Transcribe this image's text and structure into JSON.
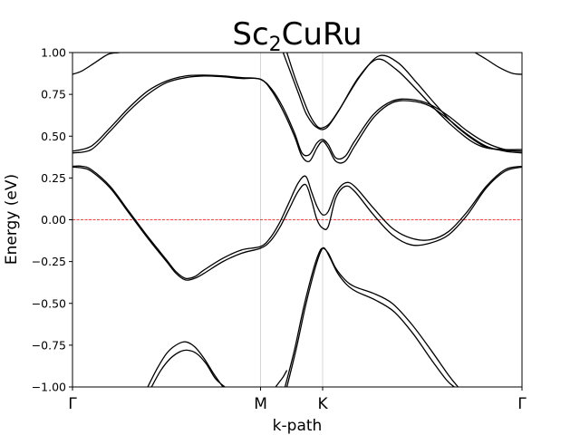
{
  "chart_data": {
    "type": "line",
    "title": {
      "prefix": "Sc",
      "subscript": "2",
      "suffix": "CuRu"
    },
    "xlabel": "k-path",
    "ylabel": "Energy (eV)",
    "xlim": [
      0,
      2.39
    ],
    "ylim": [
      -1.0,
      1.0
    ],
    "x_ticks": [
      {
        "label": "Γ",
        "x": 0
      },
      {
        "label": "M",
        "x": 1
      },
      {
        "label": "K",
        "x": 1.33
      },
      {
        "label": "Γ",
        "x": 2.39
      }
    ],
    "y_ticks": [
      {
        "value": -1.0,
        "label": "−1.00"
      },
      {
        "value": -0.75,
        "label": "−0.75"
      },
      {
        "value": -0.5,
        "label": "−0.50"
      },
      {
        "value": -0.25,
        "label": "−0.25"
      },
      {
        "value": 0.0,
        "label": "0.00"
      },
      {
        "value": 0.25,
        "label": "0.25"
      },
      {
        "value": 0.5,
        "label": "0.50"
      },
      {
        "value": 0.75,
        "label": "0.75"
      },
      {
        "value": 1.0,
        "label": "1.00"
      }
    ],
    "high_symmetry_lines": [
      1,
      1.33
    ],
    "fermi_level": {
      "value": 0.0,
      "color": "#ff0000",
      "style": "dashed"
    },
    "line_color": "#000000",
    "bands": [
      {
        "x": [
          0,
          0.05,
          0.12,
          0.19,
          0.25
        ],
        "y": [
          0.87,
          0.89,
          0.94,
          0.99,
          1.0
        ]
      },
      {
        "x": [
          2.14,
          2.2,
          2.27,
          2.34,
          2.39
        ],
        "y": [
          1.0,
          0.96,
          0.91,
          0.875,
          0.87
        ]
      },
      {
        "x": [
          0,
          0.1,
          0.2,
          0.3,
          0.4,
          0.5,
          0.6,
          0.7,
          0.8,
          0.9,
          1.0,
          1.06,
          1.12,
          1.18,
          1.22,
          1.26,
          1.3,
          1.33,
          1.36,
          1.4,
          1.45,
          1.5,
          1.6,
          1.7,
          1.8,
          1.9,
          2.0,
          2.1,
          2.2,
          2.3,
          2.39
        ],
        "y": [
          0.41,
          0.44,
          0.55,
          0.67,
          0.77,
          0.83,
          0.86,
          0.865,
          0.86,
          0.85,
          0.84,
          0.78,
          0.67,
          0.52,
          0.4,
          0.39,
          0.46,
          0.48,
          0.45,
          0.37,
          0.38,
          0.47,
          0.63,
          0.71,
          0.72,
          0.69,
          0.62,
          0.53,
          0.46,
          0.42,
          0.41
        ]
      },
      {
        "x": [
          0,
          0.1,
          0.2,
          0.3,
          0.4,
          0.5,
          0.6,
          0.7,
          0.8,
          0.9,
          1.0,
          1.06,
          1.12,
          1.18,
          1.22,
          1.26,
          1.3,
          1.33,
          1.36,
          1.4,
          1.45,
          1.5,
          1.6,
          1.7,
          1.8,
          1.9,
          2.0,
          2.1,
          2.2,
          2.3,
          2.39
        ],
        "y": [
          0.4,
          0.42,
          0.53,
          0.65,
          0.75,
          0.82,
          0.85,
          0.86,
          0.855,
          0.845,
          0.84,
          0.77,
          0.65,
          0.5,
          0.38,
          0.35,
          0.43,
          0.47,
          0.43,
          0.35,
          0.35,
          0.44,
          0.61,
          0.7,
          0.71,
          0.68,
          0.6,
          0.51,
          0.44,
          0.41,
          0.4
        ]
      },
      {
        "x": [
          1.12,
          1.16,
          1.2,
          1.24,
          1.28,
          1.31,
          1.33,
          1.36,
          1.42,
          1.52,
          1.62,
          1.72,
          1.82,
          1.92,
          2.02,
          2.12,
          2.2,
          2.3,
          2.39
        ],
        "y": [
          1.0,
          0.88,
          0.76,
          0.64,
          0.57,
          0.545,
          0.54,
          0.56,
          0.66,
          0.85,
          0.96,
          0.9,
          0.79,
          0.67,
          0.56,
          0.47,
          0.43,
          0.42,
          0.42
        ]
      },
      {
        "x": [
          1.14,
          1.18,
          1.22,
          1.26,
          1.3,
          1.33,
          1.37,
          1.43,
          1.53,
          1.63,
          1.73,
          1.83,
          1.93,
          2.03,
          2.13,
          2.21,
          2.3,
          2.39
        ],
        "y": [
          1.0,
          0.86,
          0.74,
          0.63,
          0.56,
          0.55,
          0.58,
          0.68,
          0.86,
          0.98,
          0.94,
          0.82,
          0.69,
          0.57,
          0.48,
          0.43,
          0.415,
          0.41
        ]
      },
      {
        "x": [
          0,
          0.05,
          0.1,
          0.2,
          0.3,
          0.4,
          0.5,
          0.55,
          0.6,
          0.65,
          0.7,
          0.8,
          0.9,
          1.0,
          1.05,
          1.1,
          1.15,
          1.2,
          1.24,
          1.27,
          1.3,
          1.33,
          1.36,
          1.4,
          1.45,
          1.5,
          1.6,
          1.7,
          1.8,
          1.9,
          2.0,
          2.1,
          2.2,
          2.3,
          2.39
        ],
        "y": [
          0.32,
          0.32,
          0.3,
          0.2,
          0.05,
          -0.1,
          -0.24,
          -0.31,
          -0.35,
          -0.34,
          -0.3,
          -0.23,
          -0.18,
          -0.16,
          -0.11,
          -0.02,
          0.1,
          0.22,
          0.26,
          0.17,
          0.08,
          0.03,
          0.05,
          0.16,
          0.22,
          0.2,
          0.07,
          -0.05,
          -0.11,
          -0.12,
          -0.07,
          0.05,
          0.2,
          0.3,
          0.32
        ]
      },
      {
        "x": [
          0,
          0.05,
          0.1,
          0.2,
          0.3,
          0.4,
          0.5,
          0.55,
          0.6,
          0.65,
          0.7,
          0.8,
          0.9,
          1.0,
          1.05,
          1.1,
          1.15,
          1.2,
          1.24,
          1.27,
          1.3,
          1.33,
          1.36,
          1.4,
          1.45,
          1.5,
          1.6,
          1.7,
          1.8,
          1.9,
          2.0,
          2.1,
          2.2,
          2.3,
          2.39
        ],
        "y": [
          0.315,
          0.31,
          0.29,
          0.19,
          0.04,
          -0.11,
          -0.25,
          -0.32,
          -0.36,
          -0.35,
          -0.32,
          -0.25,
          -0.2,
          -0.17,
          -0.13,
          -0.05,
          0.06,
          0.17,
          0.21,
          0.12,
          0.0,
          -0.05,
          -0.04,
          0.13,
          0.2,
          0.17,
          0.03,
          -0.09,
          -0.15,
          -0.14,
          -0.09,
          0.03,
          0.19,
          0.29,
          0.315
        ]
      },
      {
        "x": [
          1.13,
          1.18,
          1.23,
          1.28,
          1.31,
          1.33,
          1.36,
          1.4,
          1.45,
          1.5,
          1.6,
          1.7,
          1.8,
          1.9,
          2.0,
          2.05
        ],
        "y": [
          -1.0,
          -0.78,
          -0.52,
          -0.3,
          -0.2,
          -0.17,
          -0.2,
          -0.29,
          -0.36,
          -0.4,
          -0.44,
          -0.5,
          -0.62,
          -0.77,
          -0.93,
          -1.0
        ]
      },
      {
        "x": [
          1.14,
          1.19,
          1.24,
          1.29,
          1.32,
          1.34,
          1.37,
          1.41,
          1.46,
          1.51,
          1.61,
          1.71,
          1.81,
          1.91,
          1.99,
          2.03
        ],
        "y": [
          -1.0,
          -0.77,
          -0.51,
          -0.29,
          -0.19,
          -0.17,
          -0.23,
          -0.32,
          -0.39,
          -0.43,
          -0.48,
          -0.55,
          -0.68,
          -0.84,
          -0.96,
          -1.0
        ]
      },
      {
        "x": [
          0.4,
          0.45,
          0.5,
          0.55,
          0.6,
          0.65,
          0.7,
          0.75,
          0.8
        ],
        "y": [
          -1.0,
          -0.89,
          -0.8,
          -0.75,
          -0.73,
          -0.76,
          -0.83,
          -0.92,
          -1.0
        ]
      },
      {
        "x": [
          0.42,
          0.47,
          0.52,
          0.57,
          0.61,
          0.66,
          0.71,
          0.76,
          0.81
        ],
        "y": [
          -1.0,
          -0.9,
          -0.83,
          -0.79,
          -0.78,
          -0.8,
          -0.86,
          -0.95,
          -1.0
        ]
      },
      {
        "x": [
          1.14,
          1.12,
          1.1,
          1.08
        ],
        "y": [
          -0.9,
          -0.94,
          -0.97,
          -1.0
        ]
      }
    ]
  }
}
